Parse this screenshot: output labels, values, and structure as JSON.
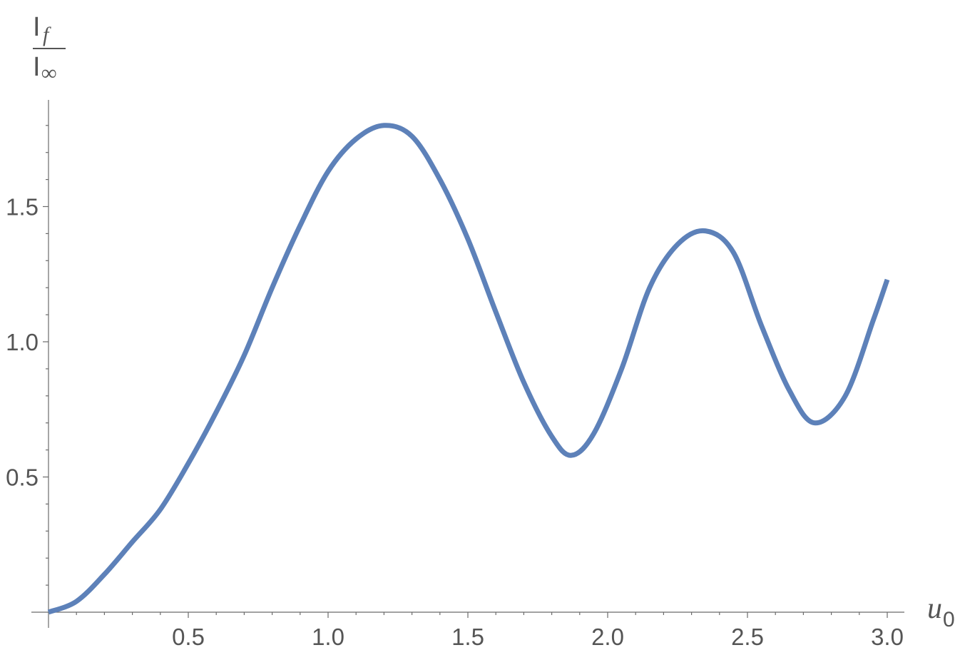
{
  "chart_data": {
    "type": "line",
    "xlabel": {
      "main": "u",
      "sub": "0"
    },
    "ylabel": {
      "numerator": "I",
      "numerator_sub": "f",
      "denominator": "I",
      "denominator_sub": "∞"
    },
    "xlim": [
      0,
      3.06
    ],
    "ylim": [
      0,
      1.93
    ],
    "x_ticks": [
      {
        "value": 0.5,
        "label": "0.5"
      },
      {
        "value": 1.0,
        "label": "1.0"
      },
      {
        "value": 1.5,
        "label": "1.5"
      },
      {
        "value": 2.0,
        "label": "2.0"
      },
      {
        "value": 2.5,
        "label": "2.5"
      },
      {
        "value": 3.0,
        "label": "3.0"
      }
    ],
    "y_ticks": [
      {
        "value": 0.5,
        "label": "0.5"
      },
      {
        "value": 1.0,
        "label": "1.0"
      },
      {
        "value": 1.5,
        "label": "1.5"
      }
    ],
    "grid": false,
    "series": [
      {
        "color": "#5d81b9",
        "x": [
          0.0,
          0.1,
          0.2,
          0.3,
          0.4,
          0.5,
          0.6,
          0.7,
          0.8,
          0.9,
          1.0,
          1.1,
          1.2,
          1.3,
          1.4,
          1.5,
          1.6,
          1.7,
          1.8,
          1.87,
          1.95,
          2.05,
          2.15,
          2.25,
          2.35,
          2.45,
          2.55,
          2.65,
          2.74,
          2.85,
          2.95,
          3.0
        ],
        "y": [
          0.0,
          0.04,
          0.14,
          0.26,
          0.38,
          0.55,
          0.74,
          0.95,
          1.2,
          1.43,
          1.63,
          1.75,
          1.8,
          1.76,
          1.6,
          1.38,
          1.11,
          0.85,
          0.65,
          0.58,
          0.66,
          0.9,
          1.2,
          1.36,
          1.41,
          1.33,
          1.06,
          0.82,
          0.7,
          0.8,
          1.08,
          1.23
        ]
      }
    ]
  }
}
